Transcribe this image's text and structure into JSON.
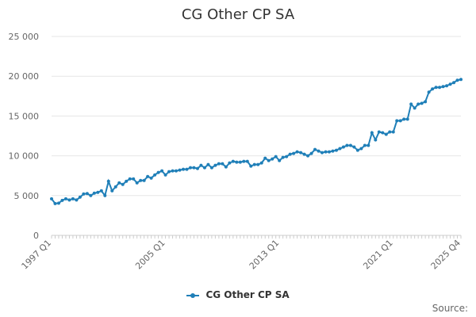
{
  "chart_data": {
    "type": "line",
    "title": "CG Other CP SA",
    "xlabel": "",
    "ylabel": "",
    "x_tick_labels": [
      "1997 Q1",
      "2005 Q1",
      "2013 Q1",
      "2021 Q1",
      "2025 Q4"
    ],
    "y_tick_labels": [
      "0",
      "5 000",
      "10 000",
      "15 000",
      "20 000",
      "25 000"
    ],
    "ylim": [
      0,
      25000
    ],
    "grid": "horizontal",
    "legend_position": "bottom",
    "series": [
      {
        "name": "CG Other CP SA",
        "color": "#1f7fb8",
        "x": [
          "1997 Q1",
          "1997 Q2",
          "1997 Q3",
          "1997 Q4",
          "1998 Q1",
          "1998 Q2",
          "1998 Q3",
          "1998 Q4",
          "1999 Q1",
          "1999 Q2",
          "1999 Q3",
          "1999 Q4",
          "2000 Q1",
          "2000 Q2",
          "2000 Q3",
          "2000 Q4",
          "2001 Q1",
          "2001 Q2",
          "2001 Q3",
          "2001 Q4",
          "2002 Q1",
          "2002 Q2",
          "2002 Q3",
          "2002 Q4",
          "2003 Q1",
          "2003 Q2",
          "2003 Q3",
          "2003 Q4",
          "2004 Q1",
          "2004 Q2",
          "2004 Q3",
          "2004 Q4",
          "2005 Q1",
          "2005 Q2",
          "2005 Q3",
          "2005 Q4",
          "2006 Q1",
          "2006 Q2",
          "2006 Q3",
          "2006 Q4",
          "2007 Q1",
          "2007 Q2",
          "2007 Q3",
          "2007 Q4",
          "2008 Q1",
          "2008 Q2",
          "2008 Q3",
          "2008 Q4",
          "2009 Q1",
          "2009 Q2",
          "2009 Q3",
          "2009 Q4",
          "2010 Q1",
          "2010 Q2",
          "2010 Q3",
          "2010 Q4",
          "2011 Q1",
          "2011 Q2",
          "2011 Q3",
          "2011 Q4",
          "2012 Q1",
          "2012 Q2",
          "2012 Q3",
          "2012 Q4",
          "2013 Q1",
          "2013 Q2",
          "2013 Q3",
          "2013 Q4",
          "2014 Q1",
          "2014 Q2",
          "2014 Q3",
          "2014 Q4",
          "2015 Q1",
          "2015 Q2",
          "2015 Q3",
          "2015 Q4",
          "2016 Q1",
          "2016 Q2",
          "2016 Q3",
          "2016 Q4",
          "2017 Q1",
          "2017 Q2",
          "2017 Q3",
          "2017 Q4",
          "2018 Q1",
          "2018 Q2",
          "2018 Q3",
          "2018 Q4",
          "2019 Q1",
          "2019 Q2",
          "2019 Q3",
          "2019 Q4",
          "2020 Q1",
          "2020 Q2",
          "2020 Q3",
          "2020 Q4",
          "2021 Q1",
          "2021 Q2",
          "2021 Q3",
          "2021 Q4",
          "2022 Q1",
          "2022 Q2",
          "2022 Q3",
          "2022 Q4",
          "2023 Q1",
          "2023 Q2",
          "2023 Q3",
          "2023 Q4",
          "2024 Q1",
          "2024 Q2",
          "2024 Q3",
          "2024 Q4",
          "2025 Q1",
          "2025 Q2",
          "2025 Q3",
          "2025 Q4"
        ],
        "values": [
          4600,
          4000,
          4050,
          4400,
          4600,
          4450,
          4600,
          4450,
          4800,
          5200,
          5250,
          5000,
          5300,
          5400,
          5600,
          5000,
          6800,
          5600,
          6100,
          6600,
          6400,
          6800,
          7100,
          7100,
          6600,
          6900,
          6900,
          7400,
          7200,
          7600,
          7900,
          8100,
          7600,
          8000,
          8100,
          8100,
          8200,
          8300,
          8300,
          8500,
          8500,
          8400,
          8800,
          8500,
          8900,
          8500,
          8800,
          9000,
          9000,
          8600,
          9100,
          9300,
          9200,
          9200,
          9300,
          9300,
          8700,
          8900,
          8900,
          9100,
          9700,
          9400,
          9600,
          9900,
          9400,
          9800,
          9900,
          10200,
          10300,
          10500,
          10400,
          10200,
          10000,
          10300,
          10800,
          10600,
          10400,
          10500,
          10500,
          10600,
          10700,
          10900,
          11100,
          11300,
          11300,
          11100,
          10700,
          10900,
          11300,
          11300,
          12900,
          12000,
          13000,
          12900,
          12700,
          13000,
          13000,
          14400,
          14400,
          14600,
          14600,
          16500,
          16000,
          16500,
          16600,
          16800,
          18000,
          18400,
          18600,
          18600,
          18700,
          18800,
          19000,
          19200,
          19500,
          19600
        ]
      }
    ]
  },
  "legend": {
    "label": "CG Other CP SA"
  },
  "footer": {
    "source_label": "Source:"
  }
}
